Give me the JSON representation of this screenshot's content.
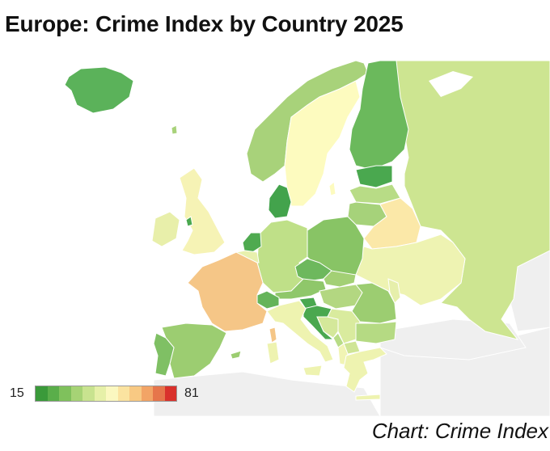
{
  "title": "Europe: Crime Index by Country 2025",
  "source": "Chart: Crime Index",
  "legend": {
    "min": "15",
    "max": "81",
    "colors": [
      "#3a9a3a",
      "#5aae4a",
      "#7fc15c",
      "#a6d375",
      "#c8e38f",
      "#e6f0a8",
      "#fbf8c0",
      "#fbe3a0",
      "#f8c983",
      "#f2a466",
      "#e6754b",
      "#d9312c"
    ]
  },
  "colors": {
    "ocean": "#ffffff",
    "non_data_land": "#efefef",
    "border": "#ffffff"
  },
  "countries": [
    {
      "name": "Iceland",
      "color": "#5bb25a"
    },
    {
      "name": "Norway",
      "color": "#a8d27a"
    },
    {
      "name": "Sweden",
      "color": "#fdfbbf"
    },
    {
      "name": "Finland",
      "color": "#6bb95c"
    },
    {
      "name": "Russia",
      "color": "#cde591"
    },
    {
      "name": "Estonia",
      "color": "#4aa84f"
    },
    {
      "name": "Latvia",
      "color": "#b8dc86"
    },
    {
      "name": "Lithuania",
      "color": "#a6d27a"
    },
    {
      "name": "Belarus",
      "color": "#fbe8a8"
    },
    {
      "name": "Ukraine",
      "color": "#eef3b2"
    },
    {
      "name": "Poland",
      "color": "#88c465"
    },
    {
      "name": "Germany",
      "color": "#bfe088"
    },
    {
      "name": "Denmark",
      "color": "#43a34c"
    },
    {
      "name": "Netherlands",
      "color": "#4faa50"
    },
    {
      "name": "Belgium",
      "color": "#e8f0ad"
    },
    {
      "name": "United Kingdom",
      "color": "#f6f3b5"
    },
    {
      "name": "Ireland",
      "color": "#e8efaa"
    },
    {
      "name": "France",
      "color": "#f5c687"
    },
    {
      "name": "Spain",
      "color": "#9ccd71"
    },
    {
      "name": "Portugal",
      "color": "#7fc064"
    },
    {
      "name": "Switzerland",
      "color": "#65b45a"
    },
    {
      "name": "Austria",
      "color": "#8fc76a"
    },
    {
      "name": "Czechia",
      "color": "#6db85d"
    },
    {
      "name": "Slovakia",
      "color": "#a3d075"
    },
    {
      "name": "Hungary",
      "color": "#b3d781"
    },
    {
      "name": "Romania",
      "color": "#9ccd71"
    },
    {
      "name": "Moldova",
      "color": "#e6efab"
    },
    {
      "name": "Italy",
      "color": "#eef3b0"
    },
    {
      "name": "Slovenia",
      "color": "#4aa84f"
    },
    {
      "name": "Croatia",
      "color": "#4aa84f"
    },
    {
      "name": "Bosnia and Herzegovina",
      "color": "#d4e89a"
    },
    {
      "name": "Serbia",
      "color": "#d9eb9e"
    },
    {
      "name": "Bulgaria",
      "color": "#b5da83"
    },
    {
      "name": "Greece",
      "color": "#eef3b0"
    },
    {
      "name": "North Macedonia",
      "color": "#cfe595"
    },
    {
      "name": "Albania",
      "color": "#f1f4b4"
    },
    {
      "name": "Montenegro",
      "color": "#b8dc86"
    },
    {
      "name": "Corsica",
      "color": "#f5c687"
    },
    {
      "name": "Sardinia",
      "color": "#eef3b0"
    },
    {
      "name": "Sicily",
      "color": "#eef3b0"
    }
  ]
}
